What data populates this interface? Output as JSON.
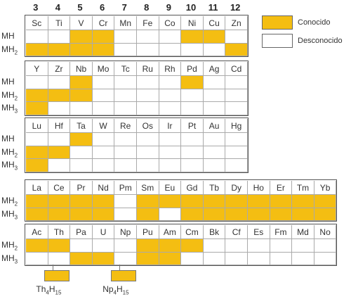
{
  "group_numbers": [
    "3",
    "4",
    "5",
    "6",
    "7",
    "8",
    "9",
    "10",
    "11",
    "12"
  ],
  "legend": {
    "known_label": "Conocido",
    "unknown_label": "Desconocido",
    "known_color": "#f4be12",
    "unknown_color": "#ffffff"
  },
  "rows": {
    "r3d": {
      "labels": [
        "MH",
        "MH2"
      ],
      "elements": [
        {
          "symbol": "Sc",
          "MH": "unknown",
          "MH2": "known"
        },
        {
          "symbol": "Ti",
          "MH": "unknown",
          "MH2": "known"
        },
        {
          "symbol": "V",
          "MH": "known",
          "MH2": "known"
        },
        {
          "symbol": "Cr",
          "MH": "known",
          "MH2": "known"
        },
        {
          "symbol": "Mn",
          "MH": "unknown",
          "MH2": "unknown"
        },
        {
          "symbol": "Fe",
          "MH": "unknown",
          "MH2": "unknown"
        },
        {
          "symbol": "Co",
          "MH": "unknown",
          "MH2": "unknown"
        },
        {
          "symbol": "Ni",
          "MH": "known",
          "MH2": "unknown"
        },
        {
          "symbol": "Cu",
          "MH": "known",
          "MH2": "unknown"
        },
        {
          "symbol": "Zn",
          "MH": "unknown",
          "MH2": "known"
        }
      ]
    },
    "r4d": {
      "labels": [
        "MH",
        "MH2",
        "MH3"
      ],
      "elements": [
        {
          "symbol": "Y",
          "MH": "unknown",
          "MH2": "known",
          "MH3": "known"
        },
        {
          "symbol": "Zr",
          "MH": "unknown",
          "MH2": "known",
          "MH3": "unknown"
        },
        {
          "symbol": "Nb",
          "MH": "known",
          "MH2": "known",
          "MH3": "unknown"
        },
        {
          "symbol": "Mo",
          "MH": "unknown",
          "MH2": "unknown",
          "MH3": "unknown"
        },
        {
          "symbol": "Tc",
          "MH": "unknown",
          "MH2": "unknown",
          "MH3": "unknown"
        },
        {
          "symbol": "Ru",
          "MH": "unknown",
          "MH2": "unknown",
          "MH3": "unknown"
        },
        {
          "symbol": "Rh",
          "MH": "unknown",
          "MH2": "unknown",
          "MH3": "unknown"
        },
        {
          "symbol": "Pd",
          "MH": "known",
          "MH2": "unknown",
          "MH3": "unknown"
        },
        {
          "symbol": "Ag",
          "MH": "unknown",
          "MH2": "unknown",
          "MH3": "unknown"
        },
        {
          "symbol": "Cd",
          "MH": "unknown",
          "MH2": "unknown",
          "MH3": "unknown"
        }
      ]
    },
    "r5d": {
      "labels": [
        "MH",
        "MH2",
        "MH3"
      ],
      "elements": [
        {
          "symbol": "Lu",
          "MH": "unknown",
          "MH2": "known",
          "MH3": "known"
        },
        {
          "symbol": "Hf",
          "MH": "unknown",
          "MH2": "known",
          "MH3": "unknown"
        },
        {
          "symbol": "Ta",
          "MH": "known",
          "MH2": "unknown",
          "MH3": "unknown"
        },
        {
          "symbol": "W",
          "MH": "unknown",
          "MH2": "unknown",
          "MH3": "unknown"
        },
        {
          "symbol": "Re",
          "MH": "unknown",
          "MH2": "unknown",
          "MH3": "unknown"
        },
        {
          "symbol": "Os",
          "MH": "unknown",
          "MH2": "unknown",
          "MH3": "unknown"
        },
        {
          "symbol": "Ir",
          "MH": "unknown",
          "MH2": "unknown",
          "MH3": "unknown"
        },
        {
          "symbol": "Pt",
          "MH": "unknown",
          "MH2": "unknown",
          "MH3": "unknown"
        },
        {
          "symbol": "Au",
          "MH": "unknown",
          "MH2": "unknown",
          "MH3": "unknown"
        },
        {
          "symbol": "Hg",
          "MH": "unknown",
          "MH2": "unknown",
          "MH3": "unknown"
        }
      ]
    },
    "lanthanides": {
      "labels": [
        "MH2",
        "MH3"
      ],
      "elements": [
        {
          "symbol": "La",
          "MH2": "known",
          "MH3": "known"
        },
        {
          "symbol": "Ce",
          "MH2": "known",
          "MH3": "known"
        },
        {
          "symbol": "Pr",
          "MH2": "known",
          "MH3": "known"
        },
        {
          "symbol": "Nd",
          "MH2": "known",
          "MH3": "known"
        },
        {
          "symbol": "Pm",
          "MH2": "unknown",
          "MH3": "unknown"
        },
        {
          "symbol": "Sm",
          "MH2": "known",
          "MH3": "known"
        },
        {
          "symbol": "Eu",
          "MH2": "known",
          "MH3": "unknown"
        },
        {
          "symbol": "Gd",
          "MH2": "known",
          "MH3": "known"
        },
        {
          "symbol": "Tb",
          "MH2": "known",
          "MH3": "known"
        },
        {
          "symbol": "Dy",
          "MH2": "known",
          "MH3": "known"
        },
        {
          "symbol": "Ho",
          "MH2": "known",
          "MH3": "known"
        },
        {
          "symbol": "Er",
          "MH2": "known",
          "MH3": "known"
        },
        {
          "symbol": "Tm",
          "MH2": "known",
          "MH3": "known"
        },
        {
          "symbol": "Yb",
          "MH2": "known",
          "MH3": "known"
        }
      ]
    },
    "actinides": {
      "labels": [
        "MH2",
        "MH3"
      ],
      "elements": [
        {
          "symbol": "Ac",
          "MH2": "known",
          "MH3": "unknown"
        },
        {
          "symbol": "Th",
          "MH2": "known",
          "MH3": "unknown"
        },
        {
          "symbol": "Pa",
          "MH2": "unknown",
          "MH3": "known"
        },
        {
          "symbol": "U",
          "MH2": "unknown",
          "MH3": "known"
        },
        {
          "symbol": "Np",
          "MH2": "unknown",
          "MH3": "unknown"
        },
        {
          "symbol": "Pu",
          "MH2": "known",
          "MH3": "known"
        },
        {
          "symbol": "Am",
          "MH2": "known",
          "MH3": "known"
        },
        {
          "symbol": "Cm",
          "MH2": "known",
          "MH3": "unknown"
        },
        {
          "symbol": "Bk",
          "MH2": "unknown",
          "MH3": "unknown"
        },
        {
          "symbol": "Cf",
          "MH2": "unknown",
          "MH3": "unknown"
        },
        {
          "symbol": "Es",
          "MH2": "unknown",
          "MH3": "unknown"
        },
        {
          "symbol": "Fm",
          "MH2": "unknown",
          "MH3": "unknown"
        },
        {
          "symbol": "Md",
          "MH2": "unknown",
          "MH3": "unknown"
        },
        {
          "symbol": "No",
          "MH2": "unknown",
          "MH3": "unknown"
        }
      ]
    }
  },
  "notes": [
    {
      "element": "Th",
      "formula": "Th4H15"
    },
    {
      "element": "Np",
      "formula": "Np4H15"
    }
  ]
}
